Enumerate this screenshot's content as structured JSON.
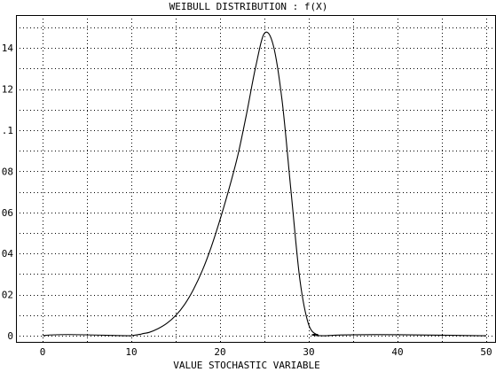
{
  "chart_data": {
    "type": "line",
    "title": "WEIBULL DISTRIBUTION : f(X)",
    "xlabel": "VALUE STOCHASTIC VARIABLE",
    "ylabel": "",
    "xlim": [
      -3,
      51
    ],
    "ylim": [
      -0.003,
      0.156
    ],
    "x_ticks": [
      0,
      10,
      20,
      30,
      40,
      50
    ],
    "x_tick_labels": [
      "0",
      "10",
      "20",
      "30",
      "40",
      "50"
    ],
    "y_ticks": [
      0,
      0.02,
      0.04,
      0.06,
      0.08,
      0.1,
      0.12,
      0.14
    ],
    "y_tick_labels": [
      "0",
      ".02",
      ".04",
      ".06",
      ".08",
      ".1",
      ".12",
      ".14"
    ],
    "x_grid": [
      0,
      5,
      10,
      15,
      20,
      25,
      30,
      35,
      40,
      45,
      50
    ],
    "y_grid": [
      0,
      0.01,
      0.02,
      0.03,
      0.04,
      0.05,
      0.06,
      0.07,
      0.08,
      0.09,
      0.1,
      0.11,
      0.12,
      0.13,
      0.14,
      0.15
    ],
    "grid": true,
    "series": [
      {
        "x": [
          0,
          10,
          11,
          12,
          13,
          14,
          15,
          16,
          17,
          18,
          19,
          20,
          21,
          22,
          23,
          24,
          25,
          26,
          27,
          28,
          29,
          30,
          31,
          32,
          50
        ],
        "y": [
          0,
          0,
          0.0006,
          0.0016,
          0.0034,
          0.006,
          0.0098,
          0.0152,
          0.0225,
          0.0317,
          0.0431,
          0.0565,
          0.0713,
          0.0877,
          0.1082,
          0.1305,
          0.1471,
          0.1413,
          0.1141,
          0.0702,
          0.0272,
          0.0052,
          0.0003,
          0,
          0
        ]
      }
    ]
  }
}
